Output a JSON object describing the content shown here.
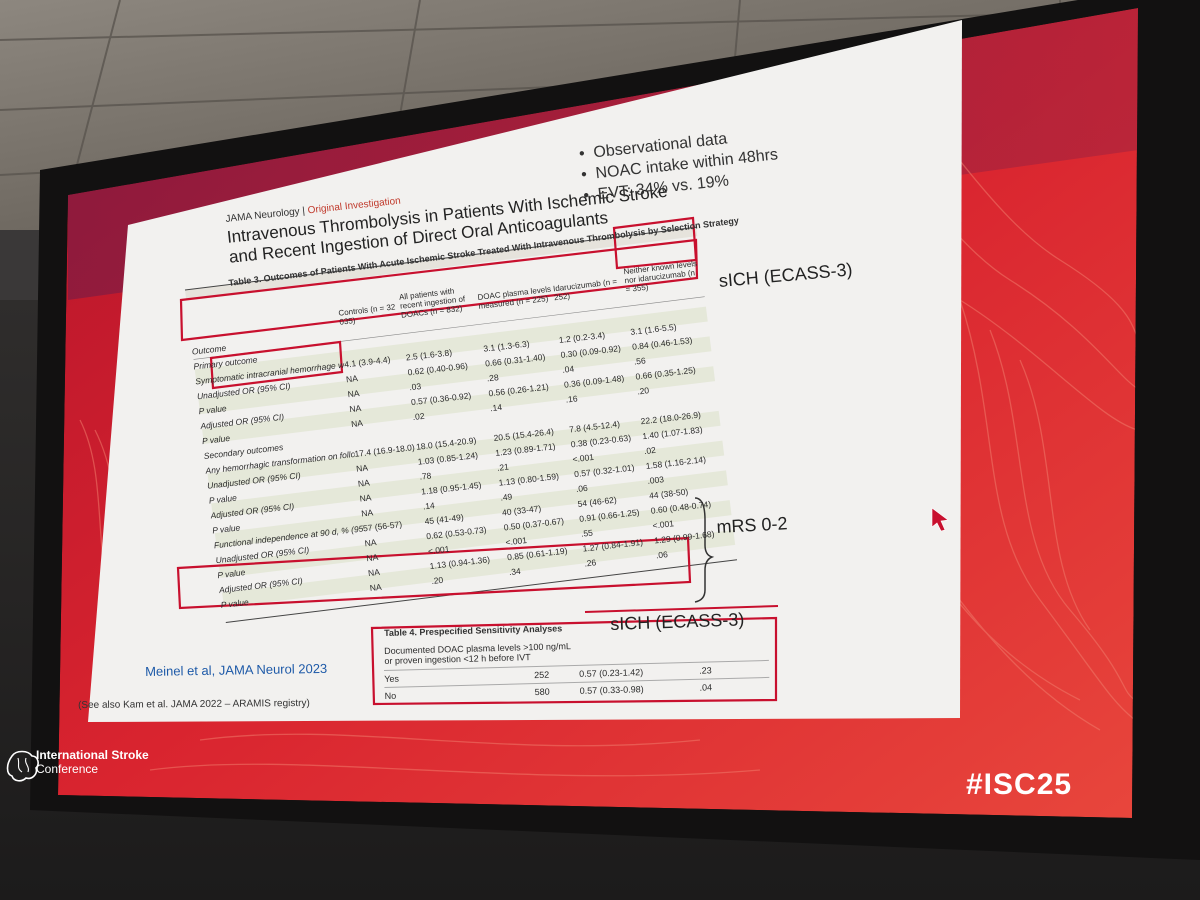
{
  "slide": {
    "journal_name": "JAMA Neurology",
    "journal_divider": "|",
    "article_type": "Original Investigation",
    "title_line1": "Intravenous Thrombolysis in Patients With Ischemic Stroke",
    "title_line2": "and Recent Ingestion of Direct Oral Anticoagulants",
    "bullets": [
      "Observational data",
      "NOAC intake within 48hrs",
      "EVT: 34% vs. 19%"
    ],
    "table3": {
      "caption": "Table 3. Outcomes of Patients With Acute Ischemic Stroke Treated With Intravenous Thrombolysis by Selection Strategy",
      "headers": [
        "",
        "Controls (n = 32 035)",
        "All patients with recent ingestion of DOACs (n = 832)",
        "DOAC plasma levels measured (n = 225)",
        "Idarucizumab (n = 252)",
        "Neither known levels nor idarucizumab (n = 355)"
      ],
      "rows": [
        [
          "Outcome",
          "",
          "",
          "",
          "",
          ""
        ],
        [
          "Primary outcome",
          "",
          "",
          "",
          "",
          ""
        ],
        [
          "Symptomatic intracranial hemorrhage within 36 h, % (95% CI)",
          "4.1 (3.9-4.4)",
          "2.5 (1.6-3.8)",
          "3.1 (1.3-6.3)",
          "1.2 (0.2-3.4)",
          "3.1 (1.6-5.5)"
        ],
        [
          "Unadjusted OR (95% CI)",
          "NA",
          "0.62 (0.40-0.96)",
          "0.66 (0.31-1.40)",
          "0.30 (0.09-0.92)",
          "0.84 (0.46-1.53)"
        ],
        [
          "P value",
          "NA",
          ".03",
          ".28",
          ".04",
          ".56"
        ],
        [
          "Adjusted OR (95% CI)",
          "NA",
          "0.57 (0.36-0.92)",
          "0.56 (0.26-1.21)",
          "0.36 (0.09-1.48)",
          "0.66 (0.35-1.25)"
        ],
        [
          "P value",
          "NA",
          ".02",
          ".14",
          ".16",
          ".20"
        ],
        [
          "Secondary outcomes",
          "",
          "",
          "",
          "",
          ""
        ],
        [
          "Any hemorrhagic transformation on follow-up imaging within 36 h, % (95% CI)",
          "17.4 (16.9-18.0)",
          "18.0 (15.4-20.9)",
          "20.5 (15.4-26.4)",
          "7.8 (4.5-12.4)",
          "22.2 (18.0-26.9)"
        ],
        [
          "Unadjusted OR (95% CI)",
          "NA",
          "1.03 (0.85-1.24)",
          "1.23 (0.89-1.71)",
          "0.38 (0.23-0.63)",
          "1.40 (1.07-1.83)"
        ],
        [
          "P value",
          "NA",
          ".78",
          ".21",
          "<.001",
          ".02"
        ],
        [
          "Adjusted OR (95% CI)",
          "NA",
          "1.18 (0.95-1.45)",
          "1.13 (0.80-1.59)",
          "0.57 (0.32-1.01)",
          "1.58 (1.16-2.14)"
        ],
        [
          "P value",
          "NA",
          ".14",
          ".49",
          ".06",
          ".003"
        ],
        [
          "Functional independence at 90 d, % (95% CI)",
          "57 (56-57)",
          "45 (41-49)",
          "40 (33-47)",
          "54 (46-62)",
          "44 (38-50)"
        ],
        [
          "Unadjusted OR (95% CI)",
          "NA",
          "0.62 (0.53-0.73)",
          "0.50 (0.37-0.67)",
          "0.91 (0.66-1.25)",
          "0.60 (0.48-0.74)"
        ],
        [
          "P value",
          "NA",
          "<.001",
          "<.001",
          ".55",
          "<.001"
        ],
        [
          "Adjusted OR (95% CI)",
          "NA",
          "1.13 (0.94-1.36)",
          "0.85 (0.61-1.19)",
          "1.27 (0.84-1.91)",
          "1.29 (0.99-1.68)"
        ],
        [
          "P value",
          "NA",
          ".20",
          ".34",
          ".26",
          ".06"
        ]
      ]
    },
    "label_sich_top": "sICH (ECASS-3)",
    "label_mrs": "mRS 0-2",
    "label_sich_bottom": "sICH (ECASS-3)",
    "table4": {
      "caption": "Table 4. Prespecified Sensitivity Analyses",
      "row_header_line1": "Documented DOAC plasma levels >100 ng/mL",
      "row_header_line2": "or proven ingestion <12 h before IVT",
      "rows": [
        [
          "Yes",
          "252",
          "0.57 (0.23-1.42)",
          ".23"
        ],
        [
          "No",
          "580",
          "0.57 (0.33-0.98)",
          ".04"
        ]
      ]
    },
    "reference": "Meinel et al, JAMA Neurol 2023",
    "see_also": "(See also Kam et al. JAMA 2022 – ARAMIS registry)"
  },
  "branding": {
    "logo_line1": "International Stroke",
    "logo_line2": "Conference",
    "logo_icon": "brain-icon",
    "hashtag": "#ISC25"
  },
  "colors": {
    "slide_red": "#d8242e",
    "highlight_box": "#c8102e",
    "reference_blue": "#1e5aa8"
  }
}
